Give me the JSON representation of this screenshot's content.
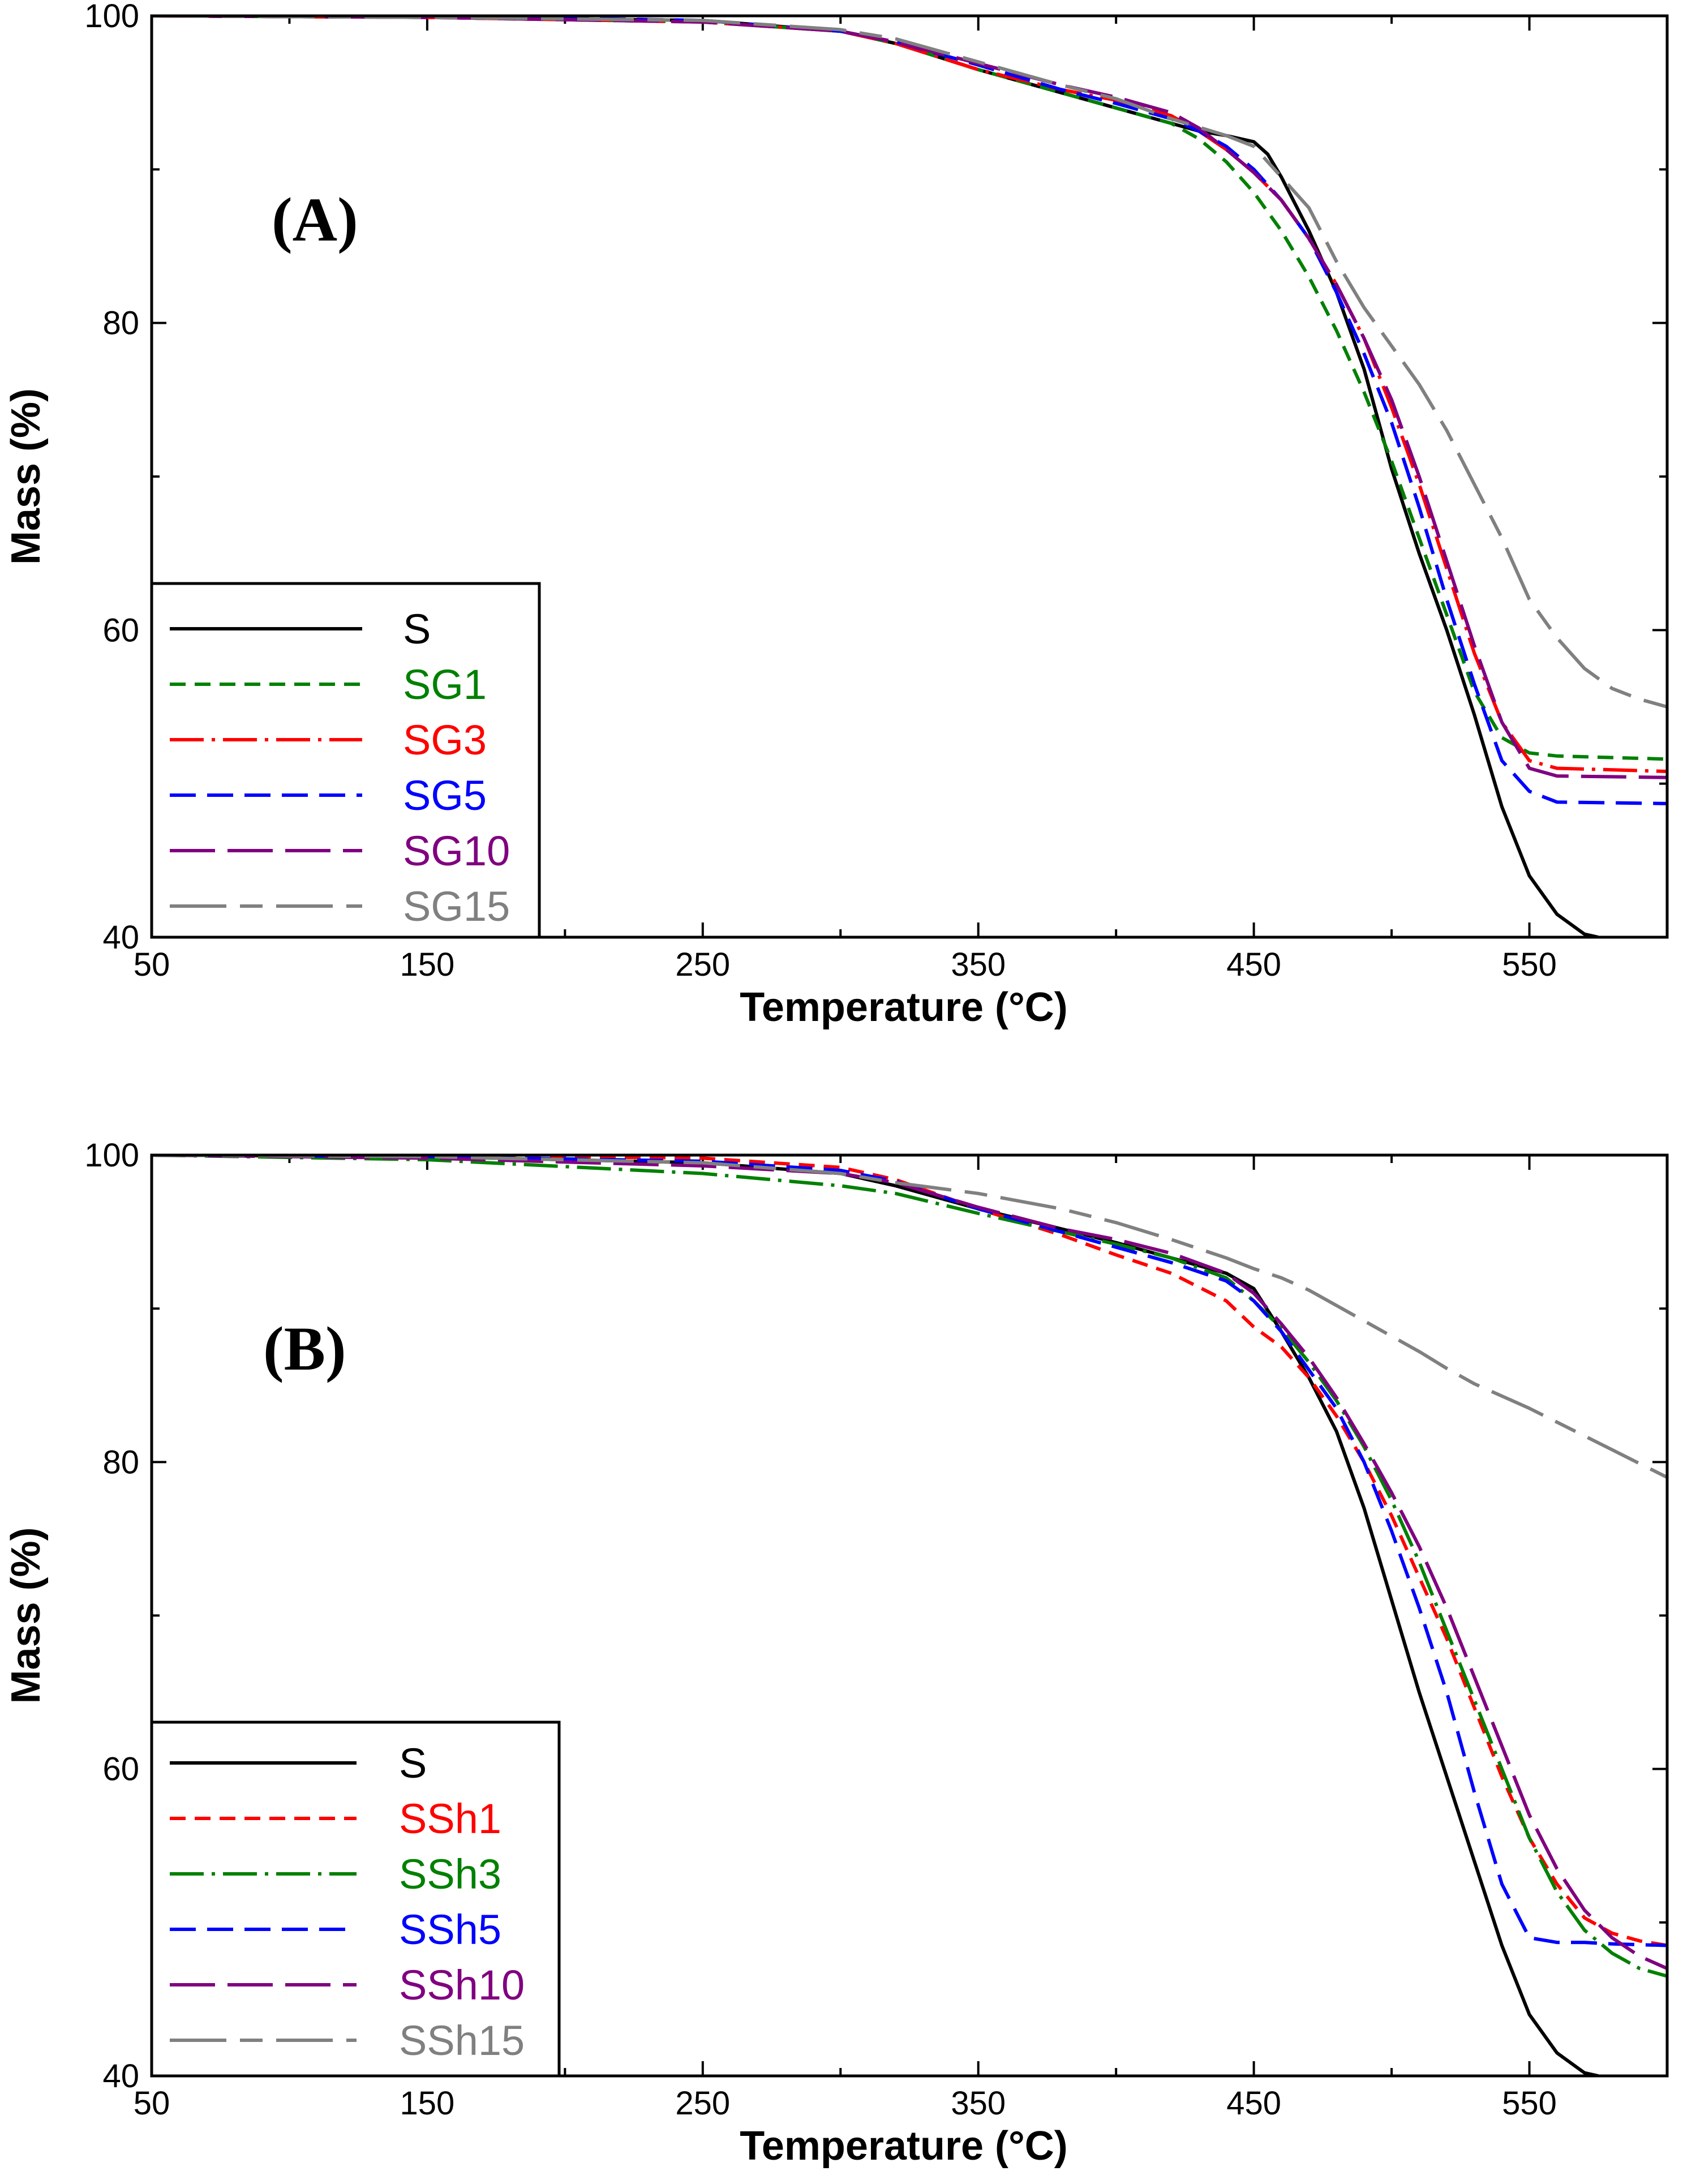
{
  "chart_data": [
    {
      "type": "line",
      "panel_label": "(A)",
      "xlabel": "Temperature (°C)",
      "ylabel": "Mass (%)",
      "xlim": [
        50,
        600
      ],
      "ylim": [
        40,
        100
      ],
      "xticks": [
        "50",
        "150",
        "250",
        "350",
        "450",
        "550"
      ],
      "yticks": [
        "40",
        "60",
        "80",
        "100"
      ],
      "legend_position": "bottom-left",
      "series": [
        {
          "name": "S",
          "color": "#000000",
          "dash": "solid",
          "x": [
            50,
            150,
            250,
            300,
            320,
            350,
            380,
            400,
            420,
            430,
            440,
            450,
            455,
            460,
            470,
            480,
            490,
            500,
            510,
            520,
            530,
            540,
            550,
            560,
            570,
            575
          ],
          "y": [
            100,
            99.9,
            99.7,
            99,
            98.2,
            96.5,
            95,
            94,
            93,
            92.5,
            92.2,
            91.8,
            91,
            89.5,
            86,
            82,
            77,
            70.5,
            65,
            60,
            54.5,
            48.5,
            44,
            41.5,
            40.2,
            40
          ]
        },
        {
          "name": "SG1",
          "color": "#008000",
          "dash": "dash",
          "x": [
            50,
            150,
            250,
            300,
            320,
            350,
            380,
            400,
            420,
            430,
            440,
            450,
            460,
            470,
            480,
            490,
            500,
            510,
            520,
            530,
            540,
            550,
            560,
            600
          ],
          "y": [
            100,
            99.9,
            99.6,
            99,
            98.2,
            96.5,
            95,
            94,
            93,
            92,
            90.5,
            88.5,
            86,
            83,
            79.5,
            75.5,
            71,
            66,
            61,
            56,
            53,
            52,
            51.8,
            51.6
          ]
        },
        {
          "name": "SG3",
          "color": "#ff0000",
          "dash": "dashdot",
          "x": [
            50,
            150,
            250,
            300,
            320,
            350,
            380,
            400,
            420,
            430,
            440,
            450,
            460,
            470,
            480,
            490,
            500,
            510,
            520,
            530,
            540,
            550,
            560,
            600
          ],
          "y": [
            100,
            99.9,
            99.6,
            99,
            98.2,
            96.5,
            95.2,
            94.5,
            93.5,
            92.5,
            91.3,
            89.8,
            88,
            85.5,
            82.5,
            79,
            74.5,
            69.5,
            64,
            58.5,
            54,
            51.5,
            51,
            50.8
          ]
        },
        {
          "name": "SG5",
          "color": "#0000ff",
          "dash": "longdash",
          "x": [
            50,
            150,
            250,
            300,
            320,
            350,
            380,
            400,
            420,
            430,
            440,
            450,
            460,
            470,
            480,
            490,
            500,
            510,
            520,
            530,
            540,
            550,
            560,
            600
          ],
          "y": [
            100.1,
            100,
            99.7,
            99,
            98.3,
            96.8,
            95.2,
            94.3,
            93.3,
            92.5,
            91.5,
            90,
            88,
            85.5,
            82,
            78,
            73.5,
            68,
            62,
            56.5,
            51.5,
            49.5,
            48.8,
            48.7
          ]
        },
        {
          "name": "SG10",
          "color": "#800080",
          "dash": "longdash2",
          "x": [
            50,
            150,
            250,
            300,
            320,
            350,
            380,
            400,
            420,
            430,
            440,
            450,
            460,
            470,
            480,
            490,
            500,
            510,
            520,
            530,
            540,
            550,
            560,
            600
          ],
          "y": [
            100,
            99.9,
            99.6,
            99,
            98.3,
            96.9,
            95.5,
            94.7,
            93.7,
            92.7,
            91.3,
            89.8,
            88,
            85.5,
            82.5,
            79,
            75,
            70,
            64.5,
            59,
            54,
            51,
            50.5,
            50.4
          ]
        },
        {
          "name": "SG15",
          "color": "#808080",
          "dash": "dashlong",
          "x": [
            50,
            150,
            250,
            300,
            320,
            350,
            380,
            400,
            420,
            440,
            450,
            460,
            470,
            480,
            490,
            500,
            510,
            520,
            530,
            540,
            550,
            560,
            570,
            580,
            590,
            600
          ],
          "y": [
            100,
            99.9,
            99.7,
            99.1,
            98.5,
            97,
            95.5,
            94.6,
            93.3,
            92.2,
            91.5,
            89.5,
            87.5,
            84,
            81,
            78.5,
            76,
            73,
            69.5,
            66,
            62,
            59.5,
            57.5,
            56.2,
            55.5,
            55
          ]
        }
      ]
    },
    {
      "type": "line",
      "panel_label": "(B)",
      "xlabel": "Temperature (°C)",
      "ylabel": "Mass (%)",
      "xlim": [
        50,
        600
      ],
      "ylim": [
        40,
        100
      ],
      "xticks": [
        "50",
        "150",
        "250",
        "350",
        "450",
        "550"
      ],
      "yticks": [
        "40",
        "60",
        "80",
        "100"
      ],
      "legend_position": "bottom-left",
      "series": [
        {
          "name": "S",
          "color": "#000000",
          "dash": "solid",
          "x": [
            50,
            150,
            250,
            300,
            320,
            350,
            380,
            400,
            420,
            440,
            450,
            460,
            470,
            480,
            490,
            500,
            510,
            520,
            530,
            540,
            550,
            560,
            570,
            575
          ],
          "y": [
            100,
            99.9,
            99.5,
            98.8,
            98,
            96.5,
            95.2,
            94.3,
            93.3,
            92.3,
            91.3,
            88.5,
            85.5,
            82,
            77,
            71,
            65,
            59.5,
            54,
            48.5,
            44,
            41.5,
            40.2,
            40
          ]
        },
        {
          "name": "SSh1",
          "color": "#ff0000",
          "dash": "dash",
          "x": [
            50,
            150,
            250,
            300,
            320,
            350,
            380,
            400,
            420,
            440,
            450,
            460,
            470,
            480,
            490,
            500,
            510,
            520,
            530,
            540,
            550,
            560,
            570,
            580,
            590,
            600
          ],
          "y": [
            100,
            100,
            99.8,
            99.2,
            98.4,
            96.5,
            94.8,
            93.5,
            92.3,
            90.5,
            88.8,
            87.5,
            85.5,
            83,
            80,
            76.5,
            72.5,
            68.5,
            64,
            59.5,
            55.5,
            52.5,
            50.3,
            49.3,
            48.8,
            48.5
          ]
        },
        {
          "name": "SSh3",
          "color": "#008000",
          "dash": "dashdot",
          "x": [
            50,
            150,
            250,
            300,
            320,
            350,
            380,
            400,
            420,
            440,
            450,
            460,
            470,
            480,
            490,
            500,
            510,
            520,
            530,
            540,
            550,
            560,
            570,
            580,
            590,
            600
          ],
          "y": [
            100,
            99.7,
            98.8,
            98,
            97.5,
            96.2,
            95,
            94.2,
            93.3,
            92,
            90.5,
            88.7,
            86.5,
            84,
            81,
            77.5,
            73.5,
            69,
            64.5,
            60,
            55.5,
            52,
            49.5,
            48,
            47,
            46.5
          ]
        },
        {
          "name": "SSh5",
          "color": "#0000ff",
          "dash": "longdash",
          "x": [
            50,
            150,
            250,
            300,
            320,
            350,
            380,
            400,
            420,
            440,
            450,
            460,
            470,
            480,
            490,
            500,
            510,
            520,
            530,
            540,
            550,
            560,
            570,
            580,
            600
          ],
          "y": [
            100,
            99.9,
            99.6,
            99,
            98.3,
            96.5,
            95,
            94,
            93,
            91.8,
            90.5,
            88.5,
            86,
            83.5,
            80,
            75.5,
            70.5,
            65,
            58.5,
            52.5,
            49,
            48.7,
            48.7,
            48.6,
            48.5
          ]
        },
        {
          "name": "SSh10",
          "color": "#800080",
          "dash": "longdash2",
          "x": [
            50,
            150,
            250,
            300,
            320,
            350,
            380,
            400,
            420,
            440,
            450,
            460,
            470,
            480,
            490,
            500,
            510,
            520,
            530,
            540,
            550,
            560,
            570,
            580,
            590,
            600
          ],
          "y": [
            100,
            99.8,
            99.3,
            98.8,
            98.2,
            96.6,
            95.2,
            94.5,
            93.6,
            92.3,
            91,
            89,
            86.8,
            84.2,
            81.2,
            78,
            74.5,
            70.5,
            66,
            61.5,
            57,
            53.5,
            50.8,
            49,
            47.8,
            47
          ]
        },
        {
          "name": "SSh15",
          "color": "#808080",
          "dash": "dashlong",
          "x": [
            50,
            150,
            250,
            300,
            320,
            350,
            380,
            400,
            420,
            440,
            450,
            460,
            470,
            480,
            490,
            500,
            510,
            520,
            530,
            540,
            550,
            560,
            570,
            580,
            590,
            600
          ],
          "y": [
            100,
            99.9,
            99.5,
            98.8,
            98.2,
            97.5,
            96.5,
            95.6,
            94.5,
            93.3,
            92.6,
            92,
            91.2,
            90.2,
            89.2,
            88.2,
            87.2,
            86.1,
            85.1,
            84.3,
            83.5,
            82.6,
            81.7,
            80.8,
            79.9,
            79
          ]
        }
      ]
    }
  ]
}
